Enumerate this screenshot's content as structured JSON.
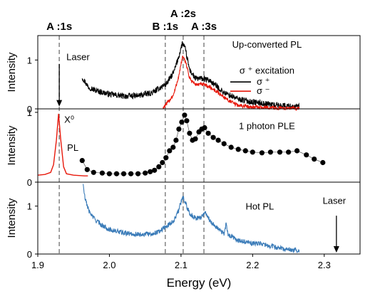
{
  "chart_data": {
    "type": "line",
    "xlabel": "Energy (eV)",
    "xlim": [
      1.9,
      2.35
    ],
    "x_ticks": [
      "1.9",
      "2.0",
      "2.1",
      "2.2",
      "2.3"
    ],
    "x_tick_values": [
      1.9,
      2.0,
      2.1,
      2.2,
      2.3
    ],
    "transitions": [
      {
        "label": "A :1s",
        "energy": 1.93
      },
      {
        "label": "B :1s",
        "energy": 2.078
      },
      {
        "label": "A :2s",
        "energy": 2.103
      },
      {
        "label": "A :3s",
        "energy": 2.132
      }
    ],
    "panels": [
      {
        "ylabel": "Intensity",
        "ylim": [
          0,
          1.5
        ],
        "y_ticks": [
          "0",
          "1"
        ],
        "y_tick_values": [
          0,
          1
        ],
        "annotations": [
          {
            "text": "Laser",
            "x": 1.94,
            "y": 1.0
          },
          {
            "text": "Up-converted PL",
            "x": 2.22,
            "y": 1.25
          },
          {
            "text": "σ ⁺ excitation",
            "x": 2.22,
            "y": 0.72
          }
        ],
        "arrow": {
          "x": 1.93,
          "from_y": 0.92,
          "to_y": 0.05
        },
        "legend": [
          "σ ⁺",
          "σ ⁻"
        ],
        "series": [
          {
            "name": "σ ⁺",
            "color": "#000000",
            "noise": 0.06,
            "points": [
              [
                1.962,
                0.65
              ],
              [
                1.97,
                0.46
              ],
              [
                1.98,
                0.38
              ],
              [
                2.0,
                0.3
              ],
              [
                2.02,
                0.26
              ],
              [
                2.04,
                0.27
              ],
              [
                2.06,
                0.33
              ],
              [
                2.08,
                0.52
              ],
              [
                2.09,
                0.75
              ],
              [
                2.097,
                1.08
              ],
              [
                2.102,
                1.35
              ],
              [
                2.106,
                1.22
              ],
              [
                2.112,
                0.8
              ],
              [
                2.12,
                0.62
              ],
              [
                2.13,
                0.62
              ],
              [
                2.14,
                0.58
              ],
              [
                2.15,
                0.46
              ],
              [
                2.16,
                0.33
              ],
              [
                2.18,
                0.2
              ],
              [
                2.2,
                0.14
              ],
              [
                2.22,
                0.1
              ],
              [
                2.24,
                0.07
              ],
              [
                2.265,
                0.04
              ]
            ]
          },
          {
            "name": "σ ⁻",
            "color": "#e8190c",
            "noise": 0.04,
            "points": [
              [
                2.075,
                0.02
              ],
              [
                2.08,
                0.1
              ],
              [
                2.09,
                0.3
              ],
              [
                2.097,
                0.68
              ],
              [
                2.102,
                1.06
              ],
              [
                2.107,
                0.95
              ],
              [
                2.112,
                0.62
              ],
              [
                2.12,
                0.5
              ],
              [
                2.13,
                0.5
              ],
              [
                2.14,
                0.45
              ],
              [
                2.15,
                0.35
              ],
              [
                2.16,
                0.24
              ],
              [
                2.17,
                0.14
              ],
              [
                2.18,
                0.07
              ],
              [
                2.2,
                0.04
              ],
              [
                2.23,
                0.02
              ],
              [
                2.265,
                0.01
              ]
            ]
          }
        ]
      },
      {
        "ylabel": "Intensity",
        "ylim": [
          0,
          1.05
        ],
        "y_ticks": [
          "0",
          "1"
        ],
        "y_tick_values": [
          0,
          1
        ],
        "annotations": [
          {
            "text": "X⁰",
            "x": 1.937,
            "y": 0.85
          },
          {
            "text": "PL",
            "x": 1.941,
            "y": 0.45
          },
          {
            "text": "1 photon PLE",
            "x": 2.22,
            "y": 0.76
          }
        ],
        "series": [
          {
            "name": "PL",
            "color": "#e8190c",
            "type": "line",
            "points": [
              [
                1.9,
                0.1
              ],
              [
                1.91,
                0.11
              ],
              [
                1.918,
                0.14
              ],
              [
                1.922,
                0.25
              ],
              [
                1.926,
                0.6
              ],
              [
                1.929,
                0.98
              ],
              [
                1.932,
                0.62
              ],
              [
                1.936,
                0.22
              ],
              [
                1.94,
                0.12
              ],
              [
                1.95,
                0.1
              ],
              [
                1.965,
                0.09
              ],
              [
                1.97,
                0.09
              ]
            ]
          },
          {
            "name": "1 photon PLE",
            "color": "#000000",
            "type": "scatter",
            "points": [
              [
                1.962,
                0.31
              ],
              [
                1.969,
                0.18
              ],
              [
                1.978,
                0.14
              ],
              [
                1.99,
                0.13
              ],
              [
                2.0,
                0.12
              ],
              [
                2.01,
                0.12
              ],
              [
                2.02,
                0.12
              ],
              [
                2.03,
                0.12
              ],
              [
                2.04,
                0.12
              ],
              [
                2.05,
                0.13
              ],
              [
                2.057,
                0.15
              ],
              [
                2.063,
                0.17
              ],
              [
                2.069,
                0.22
              ],
              [
                2.074,
                0.28
              ],
              [
                2.079,
                0.35
              ],
              [
                2.084,
                0.45
              ],
              [
                2.089,
                0.5
              ],
              [
                2.093,
                0.6
              ],
              [
                2.097,
                0.76
              ],
              [
                2.101,
                0.86
              ],
              [
                2.105,
                0.96
              ],
              [
                2.108,
                0.88
              ],
              [
                2.112,
                0.7
              ],
              [
                2.116,
                0.6
              ],
              [
                2.12,
                0.62
              ],
              [
                2.125,
                0.72
              ],
              [
                2.129,
                0.76
              ],
              [
                2.133,
                0.78
              ],
              [
                2.138,
                0.7
              ],
              [
                2.145,
                0.64
              ],
              [
                2.152,
                0.6
              ],
              [
                2.16,
                0.55
              ],
              [
                2.17,
                0.5
              ],
              [
                2.18,
                0.47
              ],
              [
                2.19,
                0.45
              ],
              [
                2.2,
                0.43
              ],
              [
                2.213,
                0.42
              ],
              [
                2.225,
                0.43
              ],
              [
                2.238,
                0.43
              ],
              [
                2.25,
                0.43
              ],
              [
                2.262,
                0.45
              ],
              [
                2.275,
                0.39
              ],
              [
                2.286,
                0.33
              ],
              [
                2.298,
                0.28
              ]
            ]
          }
        ]
      },
      {
        "ylabel": "Intensity",
        "ylim": [
          0,
          1.5
        ],
        "y_ticks": [
          "0",
          "1"
        ],
        "y_tick_values": [
          0,
          1
        ],
        "annotations": [
          {
            "text": "Hot PL",
            "x": 2.21,
            "y": 0.93
          },
          {
            "text": "Laser",
            "x": 2.314,
            "y": 1.05
          }
        ],
        "arrow": {
          "x": 2.317,
          "from_y": 0.8,
          "to_y": 0.03
        },
        "series": [
          {
            "name": "Hot PL",
            "color": "#3a7bb8",
            "noise": 0.05,
            "points": [
              [
                1.963,
                1.48
              ],
              [
                1.966,
                1.15
              ],
              [
                1.972,
                0.88
              ],
              [
                1.98,
                0.72
              ],
              [
                1.99,
                0.6
              ],
              [
                2.0,
                0.51
              ],
              [
                2.02,
                0.44
              ],
              [
                2.04,
                0.41
              ],
              [
                2.06,
                0.42
              ],
              [
                2.07,
                0.48
              ],
              [
                2.08,
                0.58
              ],
              [
                2.09,
                0.7
              ],
              [
                2.097,
                0.92
              ],
              [
                2.102,
                1.2
              ],
              [
                2.106,
                1.08
              ],
              [
                2.112,
                0.85
              ],
              [
                2.12,
                0.75
              ],
              [
                2.128,
                0.76
              ],
              [
                2.134,
                0.88
              ],
              [
                2.14,
                0.7
              ],
              [
                2.15,
                0.55
              ],
              [
                2.16,
                0.42
              ],
              [
                2.163,
                0.62
              ],
              [
                2.166,
                0.4
              ],
              [
                2.18,
                0.28
              ],
              [
                2.2,
                0.22
              ],
              [
                2.21,
                0.22
              ],
              [
                2.22,
                0.18
              ],
              [
                2.24,
                0.12
              ],
              [
                2.265,
                0.07
              ]
            ]
          }
        ]
      }
    ]
  }
}
